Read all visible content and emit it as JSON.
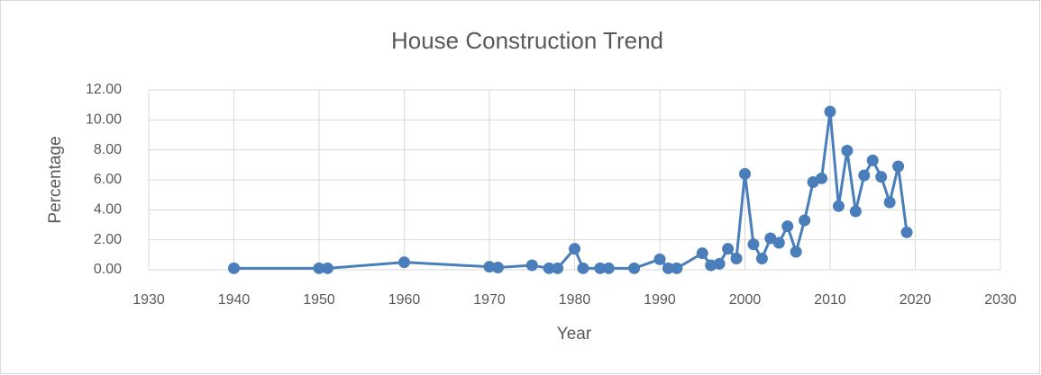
{
  "chart_data": {
    "type": "line",
    "title": "House Construction Trend",
    "x_label": "Year",
    "y_label": "Percentage",
    "x": [
      1940,
      1950,
      1951,
      1960,
      1970,
      1971,
      1975,
      1977,
      1978,
      1980,
      1981,
      1983,
      1984,
      1987,
      1990,
      1991,
      1992,
      1995,
      1996,
      1997,
      1998,
      1999,
      2000,
      2001,
      2002,
      2003,
      2004,
      2005,
      2006,
      2007,
      2008,
      2009,
      2010,
      2011,
      2012,
      2013,
      2014,
      2015,
      2016,
      2017,
      2018,
      2019
    ],
    "series": [
      {
        "name": "Percentage",
        "color": "#4a7ebb",
        "values": [
          0.1,
          0.1,
          0.1,
          0.5,
          0.2,
          0.15,
          0.3,
          0.1,
          0.1,
          1.4,
          0.1,
          0.1,
          0.1,
          0.1,
          0.7,
          0.1,
          0.1,
          1.1,
          0.3,
          0.4,
          1.4,
          0.75,
          6.4,
          1.7,
          0.75,
          2.1,
          1.8,
          2.9,
          1.2,
          3.3,
          5.85,
          6.1,
          10.55,
          4.25,
          7.95,
          3.9,
          6.3,
          7.3,
          6.2,
          4.5,
          6.9,
          2.5
        ]
      }
    ],
    "xlim": [
      1930,
      2030
    ],
    "xticks": [
      1930,
      1940,
      1950,
      1960,
      1970,
      1980,
      1990,
      2000,
      2010,
      2020,
      2030
    ],
    "ylim": [
      0,
      12
    ],
    "yticks": [
      {
        "value": 0,
        "label": "0.00"
      },
      {
        "value": 2,
        "label": "2.00"
      },
      {
        "value": 4,
        "label": "4.00"
      },
      {
        "value": 6,
        "label": "6.00"
      },
      {
        "value": 8,
        "label": "8.00"
      },
      {
        "value": 10,
        "label": "10.00"
      },
      {
        "value": 12,
        "label": "12.00"
      }
    ],
    "grid": true
  }
}
